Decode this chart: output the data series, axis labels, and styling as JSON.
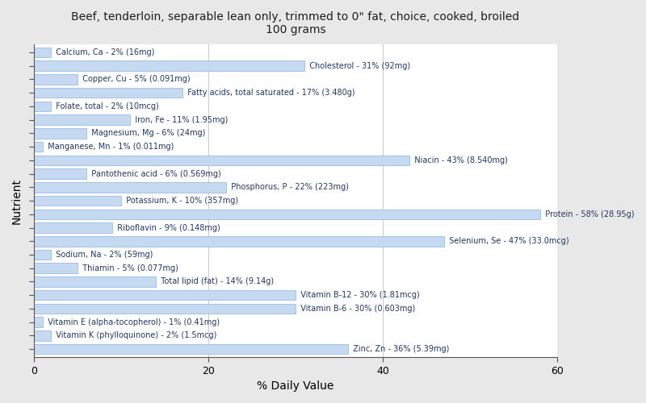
{
  "title": "Beef, tenderloin, separable lean only, trimmed to 0\" fat, choice, cooked, broiled\n100 grams",
  "xlabel": "% Daily Value",
  "ylabel": "Nutrient",
  "bar_color": "#c5d9f1",
  "bar_edge_color": "#8db4e2",
  "plot_bg": "#ffffff",
  "fig_bg": "#e8e8e8",
  "xlim": [
    0,
    60
  ],
  "xticks": [
    0,
    20,
    40,
    60
  ],
  "nutrients": [
    {
      "label": "Calcium, Ca - 2% (16mg)",
      "value": 2
    },
    {
      "label": "Cholesterol - 31% (92mg)",
      "value": 31
    },
    {
      "label": "Copper, Cu - 5% (0.091mg)",
      "value": 5
    },
    {
      "label": "Fatty acids, total saturated - 17% (3.480g)",
      "value": 17
    },
    {
      "label": "Folate, total - 2% (10mcg)",
      "value": 2
    },
    {
      "label": "Iron, Fe - 11% (1.95mg)",
      "value": 11
    },
    {
      "label": "Magnesium, Mg - 6% (24mg)",
      "value": 6
    },
    {
      "label": "Manganese, Mn - 1% (0.011mg)",
      "value": 1
    },
    {
      "label": "Niacin - 43% (8.540mg)",
      "value": 43
    },
    {
      "label": "Pantothenic acid - 6% (0.569mg)",
      "value": 6
    },
    {
      "label": "Phosphorus, P - 22% (223mg)",
      "value": 22
    },
    {
      "label": "Potassium, K - 10% (357mg)",
      "value": 10
    },
    {
      "label": "Protein - 58% (28.95g)",
      "value": 58
    },
    {
      "label": "Riboflavin - 9% (0.148mg)",
      "value": 9
    },
    {
      "label": "Selenium, Se - 47% (33.0mcg)",
      "value": 47
    },
    {
      "label": "Sodium, Na - 2% (59mg)",
      "value": 2
    },
    {
      "label": "Thiamin - 5% (0.077mg)",
      "value": 5
    },
    {
      "label": "Total lipid (fat) - 14% (9.14g)",
      "value": 14
    },
    {
      "label": "Vitamin B-12 - 30% (1.81mcg)",
      "value": 30
    },
    {
      "label": "Vitamin B-6 - 30% (0.603mg)",
      "value": 30
    },
    {
      "label": "Vitamin E (alpha-tocopherol) - 1% (0.41mg)",
      "value": 1
    },
    {
      "label": "Vitamin K (phylloquinone) - 2% (1.5mcg)",
      "value": 2
    },
    {
      "label": "Zinc, Zn - 36% (5.39mg)",
      "value": 36
    }
  ]
}
